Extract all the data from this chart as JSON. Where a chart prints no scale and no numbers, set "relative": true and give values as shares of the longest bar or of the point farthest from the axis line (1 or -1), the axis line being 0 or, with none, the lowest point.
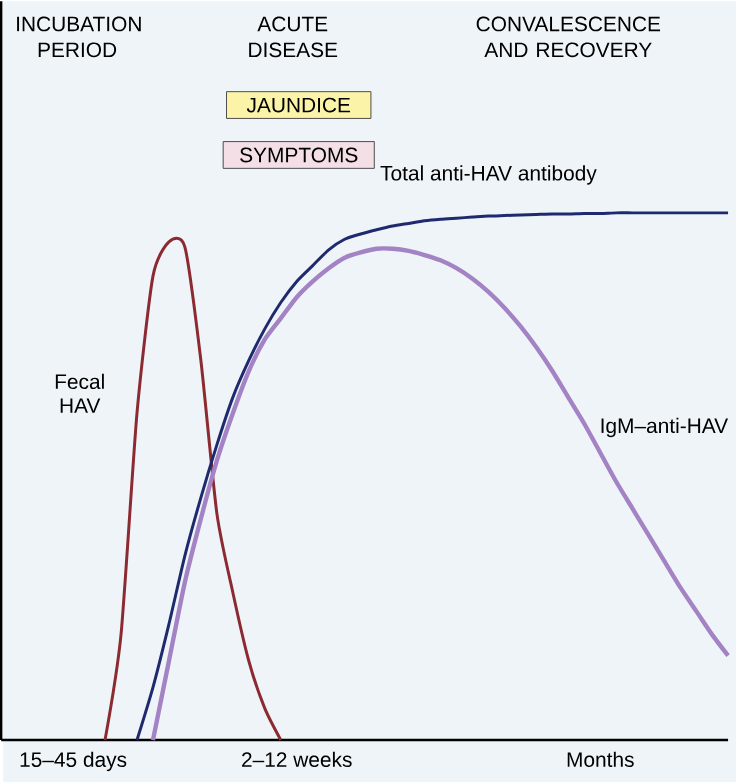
{
  "chart_data": {
    "type": "line",
    "relative": true,
    "categories": [
      null,
      null,
      null,
      null,
      "15–45 days",
      null,
      null,
      null,
      null,
      null,
      null,
      null,
      null,
      null,
      null,
      null,
      null,
      null,
      "2–12 weeks",
      null,
      null,
      null,
      null,
      null,
      null,
      null,
      null,
      null,
      null,
      null,
      null,
      null,
      null,
      null,
      null,
      null,
      null,
      "Months",
      null,
      null,
      null,
      null,
      null,
      null,
      null,
      null
    ],
    "annotations": [
      "INCUBATION PERIOD",
      "ACUTE DISEASE",
      "CONVALESCENCE AND RECOVERY",
      "JAUNDICE",
      "SYMPTOMS"
    ],
    "series": [
      {
        "name": "Fecal HAV",
        "color": "#8b2a30",
        "values": [
          null,
          null,
          null,
          null,
          null,
          null,
          0,
          0.2,
          0.62,
          0.88,
          0.945,
          0.935,
          0.72,
          0.43,
          0.28,
          0.15,
          0.06,
          0,
          null,
          null,
          null,
          null,
          null,
          null,
          null,
          null,
          null,
          null,
          null,
          null,
          null,
          null,
          null,
          null,
          null,
          null,
          null,
          null,
          null,
          null,
          null,
          null,
          null,
          null,
          null,
          null
        ]
      },
      {
        "name": "Total anti-HAV antibody",
        "color": "#1f2a6e",
        "values": [
          null,
          null,
          null,
          null,
          null,
          null,
          null,
          null,
          0,
          0.1,
          0.22,
          0.35,
          0.46,
          0.56,
          0.65,
          0.72,
          0.78,
          0.83,
          0.87,
          0.9,
          0.93,
          0.95,
          0.96,
          0.968,
          0.975,
          0.98,
          0.985,
          0.988,
          0.99,
          0.992,
          0.994,
          0.995,
          0.996,
          0.997,
          0.998,
          0.998,
          0.999,
          0.999,
          1,
          1,
          1,
          1,
          1,
          1,
          1,
          1
        ]
      },
      {
        "name": "IgM–anti-HAV",
        "color": "#a383c4",
        "values": [
          null,
          null,
          null,
          null,
          null,
          null,
          null,
          null,
          null,
          0,
          0.15,
          0.3,
          0.42,
          0.53,
          0.62,
          0.7,
          0.76,
          0.8,
          0.84,
          0.87,
          0.895,
          0.915,
          0.925,
          0.932,
          0.932,
          0.928,
          0.92,
          0.91,
          0.895,
          0.875,
          0.85,
          0.82,
          0.785,
          0.745,
          0.7,
          0.65,
          0.6,
          0.545,
          0.49,
          0.44,
          0.39,
          0.34,
          0.29,
          0.245,
          0.2,
          0.16
        ]
      }
    ]
  }
}
